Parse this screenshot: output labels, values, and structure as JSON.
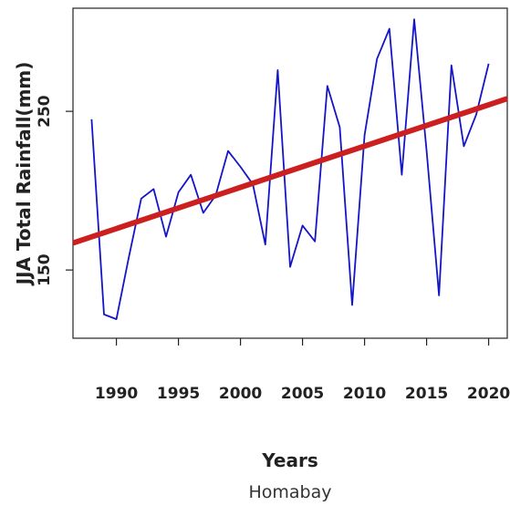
{
  "chart_data": {
    "type": "line",
    "xlabel": "Years",
    "ylabel": "JJA Total Rainfall(mm)",
    "subtitle": "Homabay",
    "xlim": [
      1986.5,
      2021.5
    ],
    "ylim": [
      107,
      315
    ],
    "x_ticks": [
      1990,
      1995,
      2000,
      2005,
      2010,
      2015,
      2020
    ],
    "y_ticks": [
      150,
      250
    ],
    "series": [
      {
        "color": "#1515c8",
        "x": [
          1988,
          1989,
          1990,
          1991,
          1992,
          1993,
          1994,
          1995,
          1996,
          1997,
          1998,
          1999,
          2000,
          2001,
          2002,
          2003,
          2004,
          2005,
          2006,
          2007,
          2008,
          2009,
          2010,
          2011,
          2012,
          2013,
          2014,
          2015,
          2016,
          2017,
          2018,
          2019,
          2020
        ],
        "y": [
          245,
          122,
          119,
          158,
          195,
          201,
          171,
          199,
          210,
          186,
          197,
          225,
          215,
          204,
          166,
          276,
          152,
          178,
          168,
          266,
          240,
          128,
          235,
          283,
          302,
          210,
          308,
          225,
          134,
          279,
          228,
          248,
          280
        ]
      }
    ],
    "trend": {
      "color": "#cc1f1f",
      "x": [
        1986.5,
        2021.5
      ],
      "y": [
        167,
        258
      ]
    },
    "grid": false
  }
}
